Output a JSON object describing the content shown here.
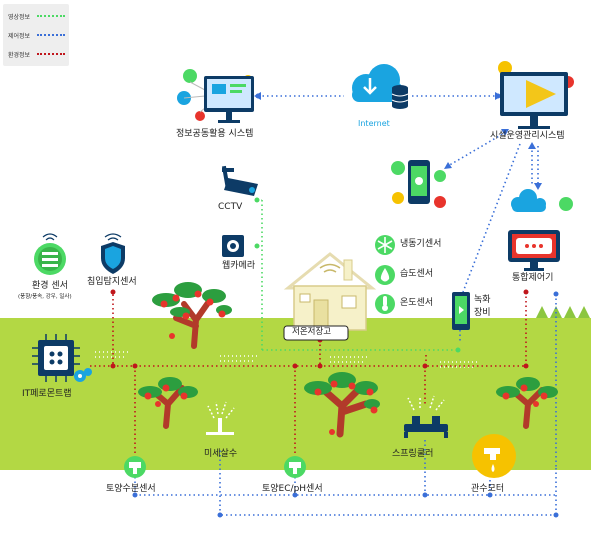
{
  "legend": {
    "items": [
      {
        "label": "영상정보",
        "color": "#4cd964"
      },
      {
        "label": "제어정보",
        "color": "#3a6fd8"
      },
      {
        "label": "환경정보",
        "color": "#c0161c"
      }
    ]
  },
  "nodes": {
    "info_share": "정보공동활용 시스템",
    "internet": "Internet",
    "facility_mgmt": "시설운영관리시스템",
    "cctv": "CCTV",
    "webcam": "웹카메라",
    "env_sensor": "환경 센서",
    "env_sensor_sub": "(풍향/풍속, 강우, 일사)",
    "intrusion_sensor": "침입탐지센서",
    "freezer_sensor": "냉동기센서",
    "humidity_sensor": "습도센서",
    "temp_sensor": "온도센서",
    "greening_equipment_1": "녹화",
    "greening_equipment_2": "장비",
    "integrated_controller": "통합제어기",
    "cold_storage": "저온저장고",
    "it_ferromon_trap": "IT페로몬트랩",
    "micro_sprinkler": "미세살수",
    "sprinkler_cooler": "스프링쿨러",
    "soil_moisture_sensor": "토양수분센서",
    "soil_ec_ph_sensor": "토양EC/pH센서",
    "irrigation_motor": "관수모터"
  },
  "colors": {
    "video": "#4cd964",
    "control": "#3a6fd8",
    "environment": "#c0161c",
    "field": "#b3d844",
    "sky_blue": "#1aa4e0",
    "tree_trunk": "#b23a2a",
    "tree_leaf": "#2c9e3f",
    "apple": "#e8342c"
  }
}
